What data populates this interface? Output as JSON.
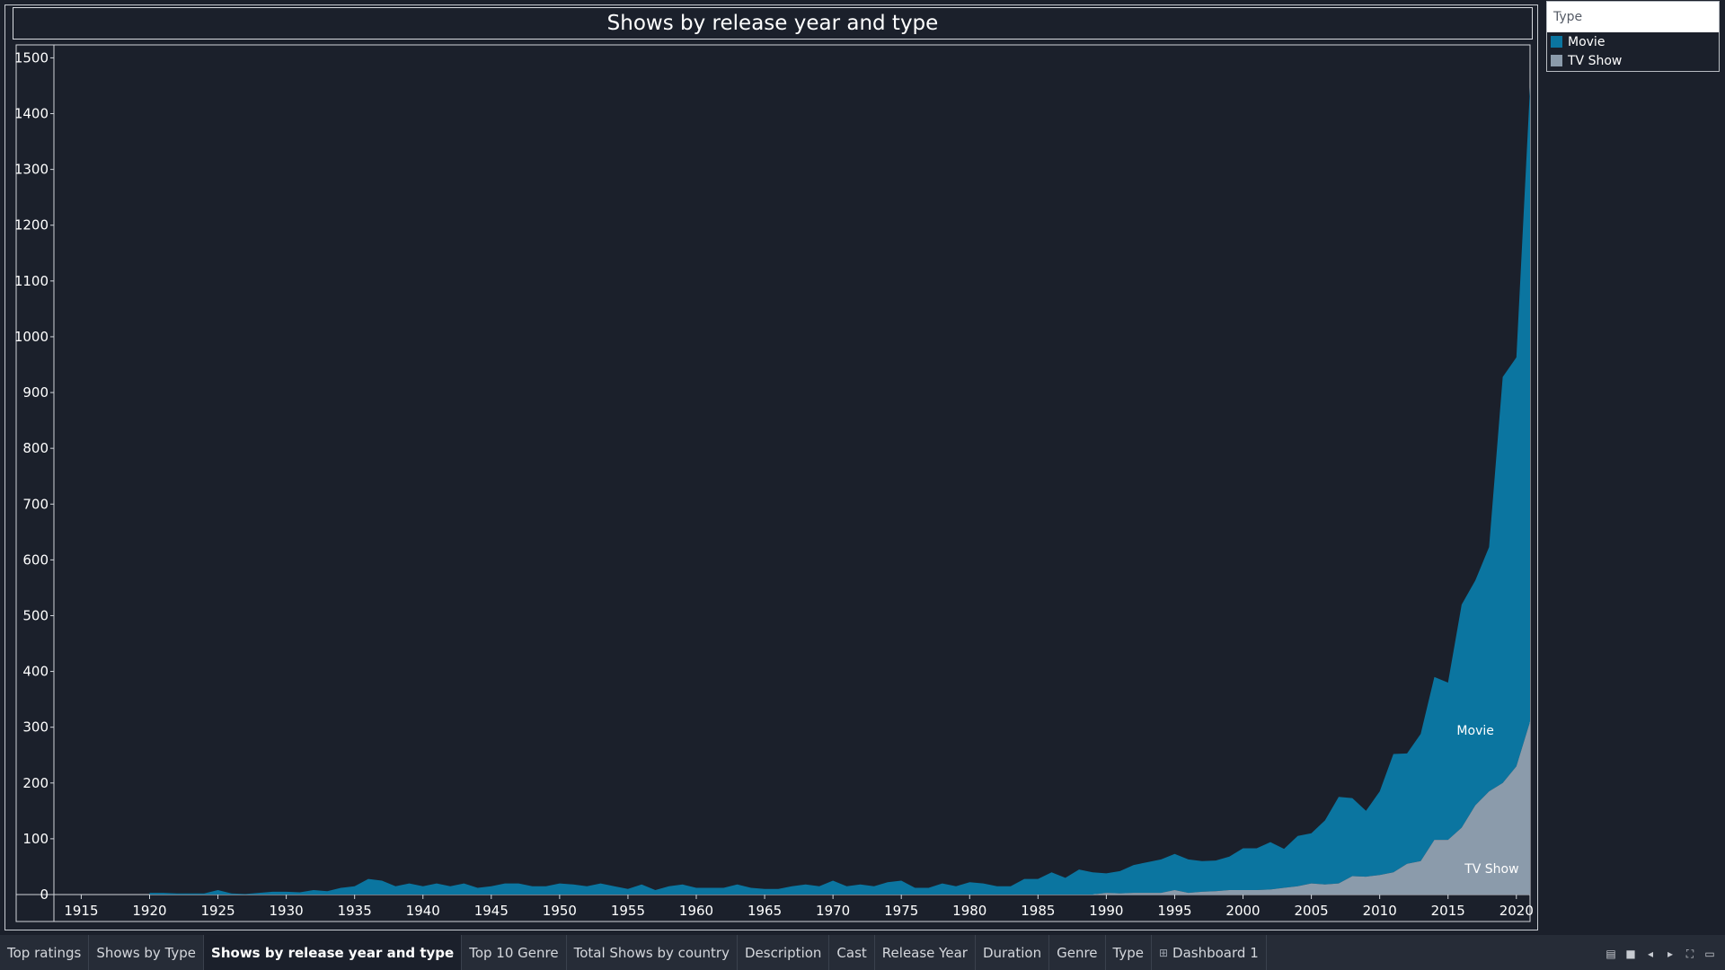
{
  "tabs": [
    {
      "label": "Top ratings",
      "active": false
    },
    {
      "label": "Shows by Type",
      "active": false
    },
    {
      "label": "Shows by release year and type",
      "active": true
    },
    {
      "label": "Top 10 Genre",
      "active": false
    },
    {
      "label": "Total Shows by country",
      "active": false
    },
    {
      "label": "Description",
      "active": false
    },
    {
      "label": "Cast",
      "active": false
    },
    {
      "label": "Release Year",
      "active": false
    },
    {
      "label": "Duration",
      "active": false
    },
    {
      "label": "Genre",
      "active": false
    },
    {
      "label": "Type",
      "active": false
    },
    {
      "label": "Dashboard 1",
      "active": false,
      "icon": "dashboard-icon"
    }
  ],
  "tab_controls": [
    "show-tabs-icon",
    "show-filmstrip-icon",
    "prev-sheet-icon",
    "next-sheet-icon",
    "fit-icon",
    "presentation-icon"
  ],
  "legend": {
    "title": "Type",
    "items": [
      {
        "label": "Movie",
        "color": "#0b75a0"
      },
      {
        "label": "TV Show",
        "color": "#8b9bab"
      }
    ]
  },
  "chart_data": {
    "type": "area",
    "stacked": true,
    "title": "Shows by release year and type",
    "xlabel": "",
    "ylabel": "",
    "xlim": [
      1913,
      2021
    ],
    "ylim": [
      0,
      1520
    ],
    "x_ticks": [
      1915,
      1920,
      1925,
      1930,
      1935,
      1940,
      1945,
      1950,
      1955,
      1960,
      1965,
      1970,
      1975,
      1980,
      1985,
      1990,
      1995,
      2000,
      2005,
      2010,
      2015,
      2020
    ],
    "y_ticks": [
      0,
      100,
      200,
      300,
      400,
      500,
      600,
      700,
      800,
      900,
      1000,
      1100,
      1200,
      1300,
      1400,
      1500
    ],
    "grid": false,
    "legend_position": "top-right",
    "annotations": [
      {
        "text": "Movie",
        "series": "Movie"
      },
      {
        "text": "TV Show",
        "series": "TV Show"
      }
    ],
    "x": [
      1920,
      1921,
      1922,
      1923,
      1924,
      1925,
      1926,
      1927,
      1928,
      1929,
      1930,
      1931,
      1932,
      1933,
      1934,
      1935,
      1936,
      1937,
      1938,
      1939,
      1940,
      1941,
      1942,
      1943,
      1944,
      1945,
      1946,
      1947,
      1948,
      1949,
      1950,
      1951,
      1952,
      1953,
      1954,
      1955,
      1956,
      1957,
      1958,
      1959,
      1960,
      1961,
      1962,
      1963,
      1964,
      1965,
      1966,
      1967,
      1968,
      1969,
      1970,
      1971,
      1972,
      1973,
      1974,
      1975,
      1976,
      1977,
      1978,
      1979,
      1980,
      1981,
      1982,
      1983,
      1984,
      1985,
      1986,
      1987,
      1988,
      1989,
      1990,
      1991,
      1992,
      1993,
      1994,
      1995,
      1996,
      1997,
      1998,
      1999,
      2000,
      2001,
      2002,
      2003,
      2004,
      2005,
      2006,
      2007,
      2008,
      2009,
      2010,
      2011,
      2012,
      2013,
      2014,
      2015,
      2016,
      2017,
      2018,
      2019,
      2020,
      2021
    ],
    "series": [
      {
        "name": "TV Show",
        "color": "#8b9bab",
        "values": [
          0,
          0,
          0,
          0,
          0,
          0,
          0,
          0,
          0,
          0,
          0,
          0,
          0,
          0,
          0,
          0,
          0,
          0,
          0,
          0,
          0,
          0,
          0,
          0,
          0,
          0,
          0,
          0,
          0,
          0,
          0,
          0,
          0,
          0,
          0,
          0,
          0,
          0,
          0,
          0,
          0,
          0,
          0,
          0,
          0,
          0,
          0,
          0,
          0,
          0,
          0,
          0,
          0,
          0,
          0,
          0,
          0,
          0,
          0,
          0,
          0,
          0,
          0,
          0,
          0,
          0,
          0,
          0,
          0,
          0,
          3,
          2,
          3,
          3,
          3,
          8,
          3,
          5,
          6,
          8,
          8,
          8,
          9,
          12,
          15,
          20,
          18,
          20,
          33,
          32,
          35,
          40,
          55,
          60,
          98,
          98,
          120,
          160,
          185,
          200,
          230,
          310
        ]
      },
      {
        "name": "Movie",
        "color": "#0b75a0",
        "values": [
          3,
          3,
          2,
          2,
          2,
          8,
          2,
          1,
          3,
          5,
          5,
          4,
          8,
          6,
          12,
          15,
          28,
          25,
          15,
          20,
          15,
          20,
          15,
          20,
          12,
          15,
          20,
          20,
          15,
          15,
          20,
          18,
          15,
          20,
          15,
          10,
          18,
          8,
          15,
          18,
          12,
          12,
          12,
          18,
          12,
          10,
          10,
          15,
          18,
          15,
          25,
          15,
          18,
          15,
          22,
          25,
          12,
          12,
          20,
          15,
          22,
          20,
          15,
          15,
          28,
          28,
          40,
          30,
          45,
          40,
          35,
          40,
          50,
          55,
          60,
          65,
          60,
          55,
          55,
          60,
          75,
          75,
          85,
          70,
          90,
          90,
          115,
          155,
          140,
          118,
          150,
          212,
          198,
          228,
          292,
          282,
          400,
          403,
          438,
          728,
          733,
          1137
        ]
      }
    ]
  }
}
